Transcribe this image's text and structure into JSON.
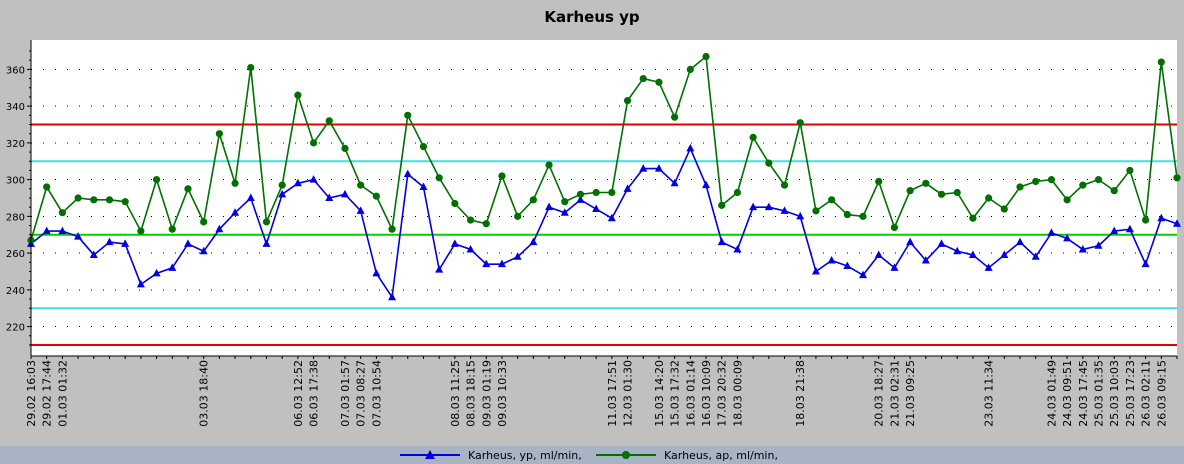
{
  "chart_data": {
    "type": "line",
    "title": "Karheus yp",
    "ylim": [
      204,
      376
    ],
    "yticks": [
      220,
      240,
      260,
      280,
      300,
      320,
      340,
      360
    ],
    "x_tick_labels": [
      "29.02 16:03",
      "29.02 17:44",
      "01.03 01:32",
      "03.03 18:40",
      "06.03 12:52",
      "06.03 17:38",
      "07.03 01:57",
      "07.03 08:27",
      "07.03 10:54",
      "08.03 11:25",
      "08.03 18:15",
      "09.03 01:19",
      "09.03 10:33",
      "11.03 17:51",
      "12.03 01:30",
      "15.03 14:20",
      "15.03 17:32",
      "16.03 01:14",
      "16.03 10:09",
      "17.03 20:32",
      "18.03 00:09",
      "18.03 21:38",
      "20.03 18:27",
      "21.03 02:31",
      "21.03 09:25",
      "23.03 11:34",
      "24.03 01:49",
      "24.03 09:51",
      "24.03 17:45",
      "25.03 01:35",
      "25.03 10:03",
      "25.03 17:23",
      "26.03 02:11",
      "26.03 09:15"
    ],
    "reference_lines": [
      {
        "value": 330,
        "color": "#e00000"
      },
      {
        "value": 310,
        "color": "#40e0e0"
      },
      {
        "value": 270,
        "color": "#00d000"
      },
      {
        "value": 230,
        "color": "#40e0e0"
      },
      {
        "value": 210,
        "color": "#e00000"
      }
    ],
    "grid": true,
    "legend_position": "bottom",
    "series": [
      {
        "name": "Karheus, yp, ml/min,",
        "color": "#0000e0",
        "marker": "triangle",
        "values": [
          265,
          272,
          272,
          269,
          259,
          266,
          265,
          243,
          249,
          252,
          265,
          261,
          273,
          282,
          290,
          265,
          292,
          298,
          300,
          290,
          292,
          283,
          249,
          236,
          303,
          296,
          251,
          265,
          262,
          254,
          254,
          258,
          266,
          285,
          282,
          289,
          284,
          279,
          295,
          306,
          306,
          298,
          317,
          297,
          266,
          262,
          285,
          285,
          283,
          280,
          250,
          256,
          253,
          248,
          259,
          252,
          266,
          256,
          265,
          261,
          259,
          252,
          259,
          266,
          258,
          271,
          268,
          262,
          264,
          272,
          273,
          254,
          279,
          276
        ]
      },
      {
        "name": "Karheus, ap, ml/min,",
        "color": "#007000",
        "marker": "circle",
        "values": [
          267,
          296,
          282,
          290,
          289,
          289,
          288,
          272,
          300,
          273,
          295,
          277,
          325,
          298,
          361,
          277,
          297,
          346,
          320,
          332,
          317,
          297,
          291,
          273,
          335,
          318,
          301,
          287,
          278,
          276,
          302,
          280,
          289,
          308,
          288,
          292,
          293,
          293,
          343,
          355,
          353,
          334,
          360,
          367,
          286,
          293,
          323,
          309,
          297,
          331,
          283,
          289,
          281,
          280,
          299,
          274,
          294,
          298,
          292,
          293,
          279,
          290,
          284,
          296,
          299,
          300,
          289,
          297,
          300,
          294,
          305,
          278,
          364,
          301
        ]
      }
    ]
  },
  "legend": {
    "item1": "Karheus, yp, ml/min,",
    "item2": "Karheus, ap, ml/min,"
  }
}
